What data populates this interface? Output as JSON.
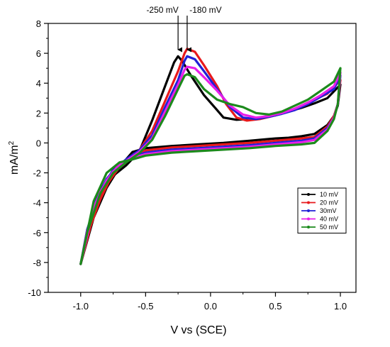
{
  "chart_data": {
    "type": "line",
    "title": "",
    "xlabel": "V vs (SCE)",
    "ylabel_main": "mA/m",
    "ylabel_sup": "2",
    "xlim": [
      -1.25,
      1.12
    ],
    "ylim": [
      -10,
      8
    ],
    "xticks": [
      -1.0,
      -0.5,
      0.0,
      0.5,
      1.0
    ],
    "xtick_labels": [
      "-1.0",
      "-0.5",
      "0.0",
      "0.5",
      "1.0"
    ],
    "yticks": [
      -10,
      -8,
      -6,
      -4,
      -2,
      0,
      2,
      4,
      6,
      8
    ],
    "ytick_labels": [
      "-10",
      "-8",
      "-6",
      "-4",
      "-2",
      "0",
      "2",
      "4",
      "6",
      "8"
    ],
    "grid": false,
    "legend_position": "lower-right",
    "annotations": [
      {
        "label": "-250 mV",
        "x": -0.25
      },
      {
        "label": "-180 mV",
        "x": -0.18
      }
    ],
    "series": [
      {
        "name": "10 mV",
        "color": "#000000",
        "upper": [
          [
            -1.0,
            -8.1
          ],
          [
            -0.95,
            -6.0
          ],
          [
            -0.85,
            -3.5
          ],
          [
            -0.75,
            -2.2
          ],
          [
            -0.65,
            -1.5
          ],
          [
            -0.55,
            -0.6
          ],
          [
            -0.45,
            1.5
          ],
          [
            -0.35,
            3.8
          ],
          [
            -0.28,
            5.4
          ],
          [
            -0.25,
            5.8
          ],
          [
            -0.22,
            5.5
          ],
          [
            -0.15,
            4.5
          ],
          [
            -0.05,
            3.2
          ],
          [
            0.05,
            2.2
          ],
          [
            0.1,
            1.7
          ],
          [
            0.2,
            1.55
          ],
          [
            0.3,
            1.6
          ],
          [
            0.4,
            1.7
          ],
          [
            0.5,
            1.85
          ],
          [
            0.6,
            2.1
          ],
          [
            0.7,
            2.35
          ],
          [
            0.8,
            2.65
          ],
          [
            0.9,
            3.0
          ],
          [
            1.0,
            3.9
          ]
        ],
        "lower": [
          [
            1.0,
            3.9
          ],
          [
            0.98,
            2.5
          ],
          [
            0.95,
            1.8
          ],
          [
            0.9,
            1.2
          ],
          [
            0.8,
            0.6
          ],
          [
            0.7,
            0.45
          ],
          [
            0.6,
            0.35
          ],
          [
            0.5,
            0.3
          ],
          [
            0.3,
            0.15
          ],
          [
            0.1,
            0.0
          ],
          [
            -0.1,
            -0.1
          ],
          [
            -0.3,
            -0.2
          ],
          [
            -0.5,
            -0.35
          ],
          [
            -0.6,
            -0.6
          ],
          [
            -0.7,
            -1.6
          ],
          [
            -0.8,
            -3.0
          ],
          [
            -0.9,
            -5.0
          ],
          [
            -1.0,
            -8.1
          ]
        ]
      },
      {
        "name": "20 mV",
        "color": "#e8191c",
        "upper": [
          [
            -1.0,
            -8.1
          ],
          [
            -0.95,
            -6.2
          ],
          [
            -0.85,
            -3.8
          ],
          [
            -0.75,
            -2.0
          ],
          [
            -0.65,
            -1.3
          ],
          [
            -0.55,
            -0.5
          ],
          [
            -0.45,
            0.8
          ],
          [
            -0.35,
            2.8
          ],
          [
            -0.25,
            4.8
          ],
          [
            -0.2,
            6.0
          ],
          [
            -0.18,
            6.3
          ],
          [
            -0.12,
            6.1
          ],
          [
            -0.05,
            5.2
          ],
          [
            0.05,
            3.8
          ],
          [
            0.12,
            2.6
          ],
          [
            0.2,
            1.7
          ],
          [
            0.28,
            1.5
          ],
          [
            0.38,
            1.6
          ],
          [
            0.5,
            1.85
          ],
          [
            0.6,
            2.1
          ],
          [
            0.7,
            2.5
          ],
          [
            0.8,
            2.9
          ],
          [
            0.9,
            3.3
          ],
          [
            1.0,
            4.2
          ]
        ],
        "lower": [
          [
            1.0,
            4.2
          ],
          [
            0.98,
            2.6
          ],
          [
            0.95,
            1.8
          ],
          [
            0.9,
            1.1
          ],
          [
            0.8,
            0.4
          ],
          [
            0.7,
            0.3
          ],
          [
            0.5,
            0.15
          ],
          [
            0.3,
            0.0
          ],
          [
            0.1,
            -0.1
          ],
          [
            -0.1,
            -0.2
          ],
          [
            -0.3,
            -0.3
          ],
          [
            -0.5,
            -0.5
          ],
          [
            -0.6,
            -0.8
          ],
          [
            -0.7,
            -1.6
          ],
          [
            -0.8,
            -2.8
          ],
          [
            -0.9,
            -4.8
          ],
          [
            -1.0,
            -8.1
          ]
        ]
      },
      {
        "name": "30mV",
        "color": "#2121d6",
        "upper": [
          [
            -1.0,
            -8.1
          ],
          [
            -0.95,
            -5.8
          ],
          [
            -0.85,
            -3.2
          ],
          [
            -0.75,
            -1.8
          ],
          [
            -0.65,
            -1.1
          ],
          [
            -0.55,
            -0.5
          ],
          [
            -0.45,
            0.5
          ],
          [
            -0.35,
            2.4
          ],
          [
            -0.25,
            4.2
          ],
          [
            -0.2,
            5.5
          ],
          [
            -0.18,
            5.8
          ],
          [
            -0.12,
            5.6
          ],
          [
            -0.05,
            4.8
          ],
          [
            0.05,
            3.6
          ],
          [
            0.15,
            2.4
          ],
          [
            0.25,
            1.7
          ],
          [
            0.35,
            1.6
          ],
          [
            0.45,
            1.75
          ],
          [
            0.55,
            1.95
          ],
          [
            0.65,
            2.2
          ],
          [
            0.75,
            2.6
          ],
          [
            0.85,
            3.1
          ],
          [
            0.95,
            3.6
          ],
          [
            1.0,
            4.5
          ]
        ],
        "lower": [
          [
            1.0,
            4.5
          ],
          [
            0.98,
            2.6
          ],
          [
            0.95,
            1.7
          ],
          [
            0.9,
            1.0
          ],
          [
            0.8,
            0.3
          ],
          [
            0.7,
            0.15
          ],
          [
            0.5,
            0.0
          ],
          [
            0.3,
            -0.15
          ],
          [
            0.1,
            -0.25
          ],
          [
            -0.1,
            -0.35
          ],
          [
            -0.3,
            -0.45
          ],
          [
            -0.5,
            -0.65
          ],
          [
            -0.6,
            -0.9
          ],
          [
            -0.7,
            -1.4
          ],
          [
            -0.8,
            -2.4
          ],
          [
            -0.9,
            -4.2
          ],
          [
            -1.0,
            -8.1
          ]
        ]
      },
      {
        "name": "40 mV",
        "color": "#e81ee8",
        "upper": [
          [
            -1.0,
            -8.1
          ],
          [
            -0.95,
            -5.9
          ],
          [
            -0.85,
            -3.3
          ],
          [
            -0.75,
            -1.9
          ],
          [
            -0.65,
            -1.2
          ],
          [
            -0.55,
            -0.6
          ],
          [
            -0.45,
            0.3
          ],
          [
            -0.35,
            2.1
          ],
          [
            -0.25,
            3.9
          ],
          [
            -0.2,
            4.9
          ],
          [
            -0.18,
            5.1
          ],
          [
            -0.12,
            5.0
          ],
          [
            -0.05,
            4.4
          ],
          [
            0.05,
            3.5
          ],
          [
            0.15,
            2.5
          ],
          [
            0.25,
            1.9
          ],
          [
            0.35,
            1.7
          ],
          [
            0.45,
            1.8
          ],
          [
            0.55,
            2.0
          ],
          [
            0.65,
            2.3
          ],
          [
            0.75,
            2.7
          ],
          [
            0.85,
            3.2
          ],
          [
            0.95,
            3.8
          ],
          [
            1.0,
            4.7
          ]
        ],
        "lower": [
          [
            1.0,
            4.7
          ],
          [
            0.98,
            2.6
          ],
          [
            0.95,
            1.7
          ],
          [
            0.9,
            0.9
          ],
          [
            0.8,
            0.2
          ],
          [
            0.7,
            0.05
          ],
          [
            0.5,
            -0.1
          ],
          [
            0.3,
            -0.25
          ],
          [
            0.1,
            -0.35
          ],
          [
            -0.1,
            -0.45
          ],
          [
            -0.3,
            -0.55
          ],
          [
            -0.5,
            -0.75
          ],
          [
            -0.6,
            -1.0
          ],
          [
            -0.7,
            -1.4
          ],
          [
            -0.8,
            -2.5
          ],
          [
            -0.9,
            -4.3
          ],
          [
            -1.0,
            -8.1
          ]
        ]
      },
      {
        "name": "50 mV",
        "color": "#1c8a1c",
        "upper": [
          [
            -1.0,
            -8.1
          ],
          [
            -0.95,
            -6.0
          ],
          [
            -0.85,
            -3.4
          ],
          [
            -0.75,
            -2.0
          ],
          [
            -0.65,
            -1.3
          ],
          [
            -0.55,
            -0.7
          ],
          [
            -0.45,
            0.2
          ],
          [
            -0.35,
            1.8
          ],
          [
            -0.25,
            3.6
          ],
          [
            -0.2,
            4.5
          ],
          [
            -0.18,
            4.6
          ],
          [
            -0.12,
            4.4
          ],
          [
            -0.05,
            3.6
          ],
          [
            0.05,
            2.9
          ],
          [
            0.15,
            2.6
          ],
          [
            0.25,
            2.4
          ],
          [
            0.35,
            2.0
          ],
          [
            0.45,
            1.9
          ],
          [
            0.55,
            2.1
          ],
          [
            0.65,
            2.5
          ],
          [
            0.75,
            2.9
          ],
          [
            0.85,
            3.5
          ],
          [
            0.95,
            4.1
          ],
          [
            1.0,
            5.0
          ]
        ],
        "lower": [
          [
            1.0,
            5.0
          ],
          [
            0.98,
            2.6
          ],
          [
            0.95,
            1.6
          ],
          [
            0.9,
            0.8
          ],
          [
            0.8,
            0.0
          ],
          [
            0.7,
            -0.1
          ],
          [
            0.5,
            -0.2
          ],
          [
            0.3,
            -0.35
          ],
          [
            0.1,
            -0.45
          ],
          [
            -0.1,
            -0.55
          ],
          [
            -0.3,
            -0.65
          ],
          [
            -0.5,
            -0.85
          ],
          [
            -0.6,
            -1.1
          ],
          [
            -0.7,
            -1.3
          ],
          [
            -0.8,
            -2.0
          ],
          [
            -0.9,
            -3.9
          ],
          [
            -1.0,
            -8.1
          ]
        ]
      }
    ]
  }
}
